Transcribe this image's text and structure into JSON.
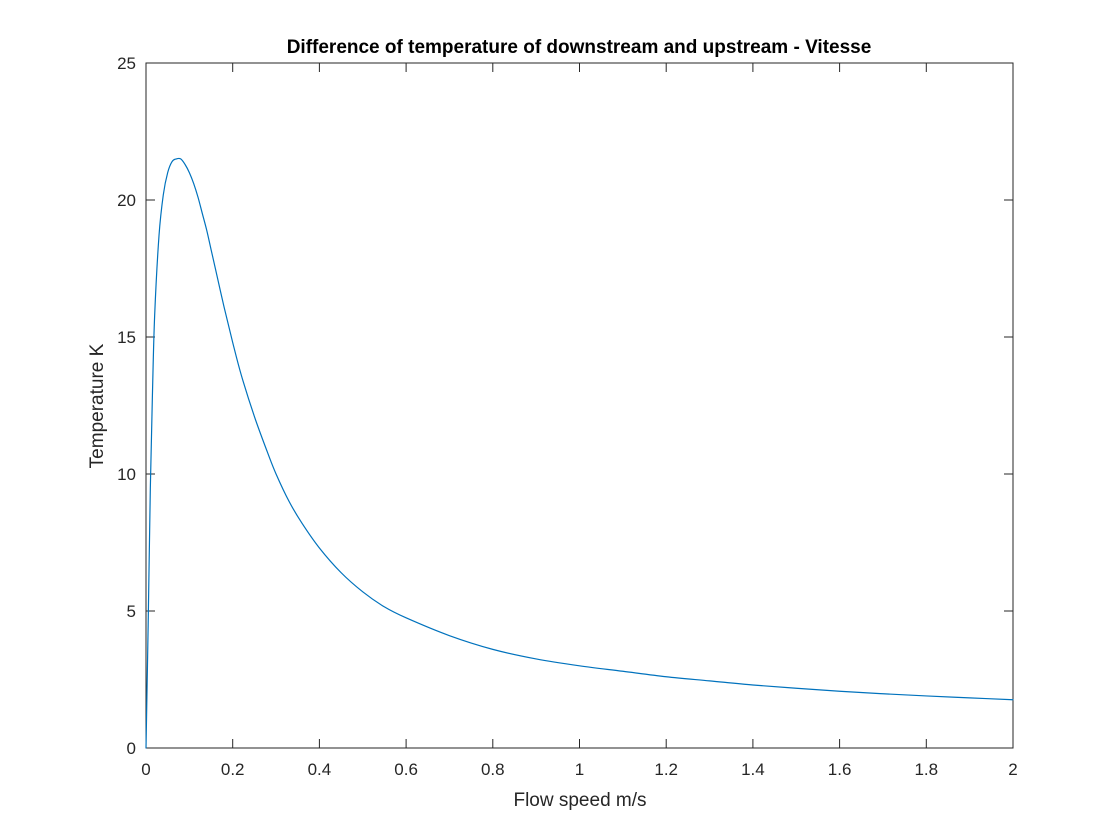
{
  "chart_data": {
    "type": "line",
    "title": "Difference of temperature of downstream and upstream - Vitesse",
    "xlabel": "Flow speed m/s",
    "ylabel": "Temperature K",
    "xlim": [
      0,
      2
    ],
    "ylim": [
      0,
      25
    ],
    "xticks": [
      0,
      0.2,
      0.4,
      0.6,
      0.8,
      1,
      1.2,
      1.4,
      1.6,
      1.8,
      2
    ],
    "xtick_labels": [
      "0",
      "0.2",
      "0.4",
      "0.6",
      "0.8",
      "1",
      "1.2",
      "1.4",
      "1.6",
      "1.8",
      "2"
    ],
    "yticks": [
      0,
      5,
      10,
      15,
      20,
      25
    ],
    "ytick_labels": [
      "0",
      "5",
      "10",
      "15",
      "20",
      "25"
    ],
    "grid": false,
    "legend": "none",
    "series": [
      {
        "color": "#0072BD",
        "x": [
          0,
          0.005,
          0.01,
          0.015,
          0.02,
          0.03,
          0.04,
          0.05,
          0.06,
          0.07,
          0.08,
          0.09,
          0.1,
          0.11,
          0.12,
          0.13,
          0.14,
          0.15,
          0.16,
          0.18,
          0.2,
          0.22,
          0.25,
          0.28,
          0.3,
          0.33,
          0.36,
          0.4,
          0.45,
          0.5,
          0.55,
          0.6,
          0.7,
          0.8,
          0.9,
          1.0,
          1.1,
          1.2,
          1.3,
          1.4,
          1.5,
          1.6,
          1.7,
          1.8,
          1.9,
          2.0
        ],
        "y": [
          0,
          4.5,
          9.5,
          13.0,
          15.8,
          18.7,
          20.2,
          21.0,
          21.4,
          21.5,
          21.5,
          21.3,
          21.0,
          20.6,
          20.1,
          19.5,
          18.9,
          18.2,
          17.5,
          16.1,
          14.8,
          13.6,
          12.1,
          10.8,
          10.0,
          9.0,
          8.2,
          7.3,
          6.4,
          5.7,
          5.15,
          4.75,
          4.1,
          3.6,
          3.25,
          3.0,
          2.8,
          2.6,
          2.45,
          2.3,
          2.18,
          2.07,
          1.98,
          1.9,
          1.83,
          1.76
        ]
      }
    ]
  }
}
